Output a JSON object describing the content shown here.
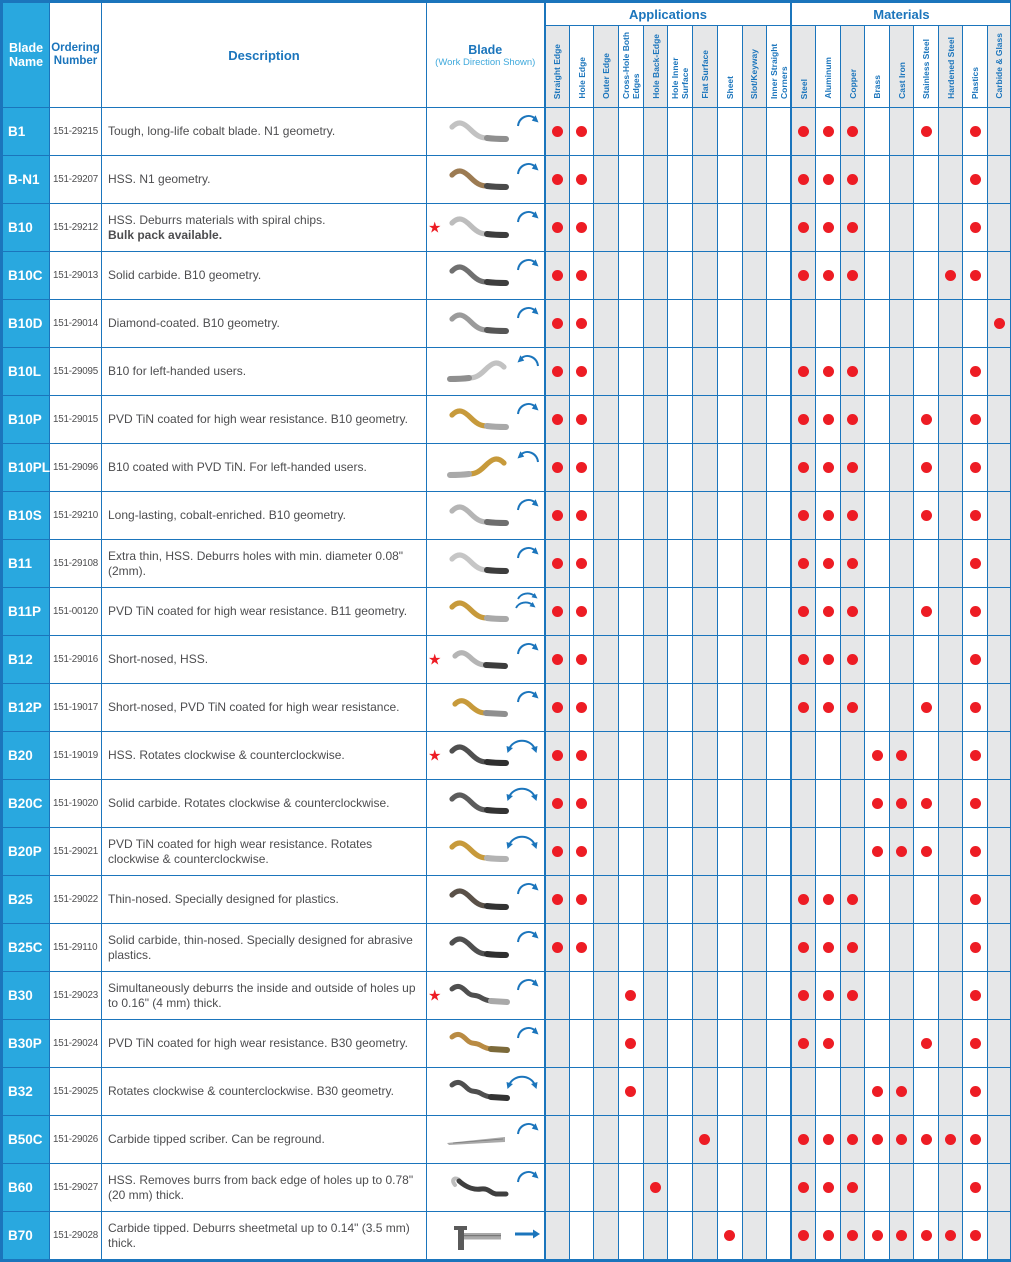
{
  "colors": {
    "accent_blue": "#29a8df",
    "border_blue": "#1b75bc",
    "header_text_blue": "#1b75bc",
    "header_sub_blue": "#3fa9dc",
    "dot_red": "#ed1c24",
    "star_red": "#ed1c24",
    "shade_gray": "#e6e7e8",
    "arrow_blue": "#1b75bc",
    "body_text": "#4d4d4f"
  },
  "table": {
    "header": {
      "blade_name": "Blade Name",
      "ordering": "Ordering Number",
      "description": "Description",
      "blade": "Blade",
      "blade_sub": "(Work Direction Shown)",
      "applications": "Applications",
      "materials": "Materials",
      "app_columns": [
        "Straight Edge",
        "Hole Edge",
        "Outer Edge",
        "Cross-Hole Both Edges",
        "Hole Back-Edge",
        "Hole Inner Surface",
        "Flat Surface",
        "Sheet",
        "Slot/Keyway",
        "Inner Straight Corners"
      ],
      "mat_columns": [
        "Steel",
        "Aluminum",
        "Copper",
        "Brass",
        "Cast Iron",
        "Stainless Steel",
        "Hardened Steel",
        "Plastics",
        "Carbide & Glass"
      ]
    },
    "rows": [
      {
        "name": "B1",
        "order": "151-29215",
        "desc": "Tough, long-life cobalt blade. N1 geometry.",
        "desc_bold": "",
        "star": false,
        "blade_shape": "s",
        "blade_mirror": false,
        "blade_colors": [
          "#c2c2c2",
          "#8f8f8f"
        ],
        "arrow": "cw",
        "apps": [
          1,
          1,
          0,
          0,
          0,
          0,
          0,
          0,
          0,
          0
        ],
        "mats": [
          1,
          1,
          1,
          0,
          0,
          1,
          0,
          1,
          0
        ]
      },
      {
        "name": "B-N1",
        "order": "151-29207",
        "desc": "HSS. N1 geometry.",
        "desc_bold": "",
        "star": false,
        "blade_shape": "s",
        "blade_mirror": false,
        "blade_colors": [
          "#9c7b52",
          "#4a4a4a"
        ],
        "arrow": "cw",
        "apps": [
          1,
          1,
          0,
          0,
          0,
          0,
          0,
          0,
          0,
          0
        ],
        "mats": [
          1,
          1,
          1,
          0,
          0,
          0,
          0,
          1,
          0
        ]
      },
      {
        "name": "B10",
        "order": "151-29212",
        "desc": "HSS. Deburrs materials with spiral chips.",
        "desc_bold": "Bulk pack available.",
        "star": true,
        "blade_shape": "s",
        "blade_mirror": false,
        "blade_colors": [
          "#bdbdbd",
          "#3d3d3d"
        ],
        "arrow": "cw",
        "apps": [
          1,
          1,
          0,
          0,
          0,
          0,
          0,
          0,
          0,
          0
        ],
        "mats": [
          1,
          1,
          1,
          0,
          0,
          0,
          0,
          1,
          0
        ]
      },
      {
        "name": "B10C",
        "order": "151-29013",
        "desc": "Solid carbide. B10 geometry.",
        "desc_bold": "",
        "star": false,
        "blade_shape": "s",
        "blade_mirror": false,
        "blade_colors": [
          "#707070",
          "#3d3d3d"
        ],
        "arrow": "cw",
        "apps": [
          1,
          1,
          0,
          0,
          0,
          0,
          0,
          0,
          0,
          0
        ],
        "mats": [
          1,
          1,
          1,
          0,
          0,
          0,
          1,
          1,
          0
        ]
      },
      {
        "name": "B10D",
        "order": "151-29014",
        "desc": "Diamond-coated. B10 geometry.",
        "desc_bold": "",
        "star": false,
        "blade_shape": "s",
        "blade_mirror": false,
        "blade_colors": [
          "#9b9b9b",
          "#565656"
        ],
        "arrow": "cw",
        "apps": [
          1,
          1,
          0,
          0,
          0,
          0,
          0,
          0,
          0,
          0
        ],
        "mats": [
          0,
          0,
          0,
          0,
          0,
          0,
          0,
          0,
          1
        ]
      },
      {
        "name": "B10L",
        "order": "151-29095",
        "desc": "B10 for left-handed users.",
        "desc_bold": "",
        "star": false,
        "blade_shape": "s",
        "blade_mirror": true,
        "blade_colors": [
          "#c2c2c2",
          "#8f8f8f"
        ],
        "arrow": "ccw",
        "apps": [
          1,
          1,
          0,
          0,
          0,
          0,
          0,
          0,
          0,
          0
        ],
        "mats": [
          1,
          1,
          1,
          0,
          0,
          0,
          0,
          1,
          0
        ]
      },
      {
        "name": "B10P",
        "order": "151-29015",
        "desc": "PVD TiN coated for high wear resistance. B10 geometry.",
        "desc_bold": "",
        "star": false,
        "blade_shape": "s",
        "blade_mirror": false,
        "blade_colors": [
          "#c79a3b",
          "#a9a9a9"
        ],
        "arrow": "cw",
        "apps": [
          1,
          1,
          0,
          0,
          0,
          0,
          0,
          0,
          0,
          0
        ],
        "mats": [
          1,
          1,
          1,
          0,
          0,
          1,
          0,
          1,
          0
        ]
      },
      {
        "name": "B10PL",
        "order": "151-29096",
        "desc": "B10 coated with PVD TiN. For left-handed users.",
        "desc_bold": "",
        "star": false,
        "blade_shape": "s",
        "blade_mirror": true,
        "blade_colors": [
          "#c79a3b",
          "#a9a9a9"
        ],
        "arrow": "ccw",
        "apps": [
          1,
          1,
          0,
          0,
          0,
          0,
          0,
          0,
          0,
          0
        ],
        "mats": [
          1,
          1,
          1,
          0,
          0,
          1,
          0,
          1,
          0
        ]
      },
      {
        "name": "B10S",
        "order": "151-29210",
        "desc": "Long-lasting, cobalt-enriched. B10 geometry.",
        "desc_bold": "",
        "star": false,
        "blade_shape": "s",
        "blade_mirror": false,
        "blade_colors": [
          "#b5b5b5",
          "#6e6e6e"
        ],
        "arrow": "cw",
        "apps": [
          1,
          1,
          0,
          0,
          0,
          0,
          0,
          0,
          0,
          0
        ],
        "mats": [
          1,
          1,
          1,
          0,
          0,
          1,
          0,
          1,
          0
        ]
      },
      {
        "name": "B11",
        "order": "151-29108",
        "desc": "Extra thin, HSS. Deburrs holes with min. diameter 0.08\" (2mm).",
        "desc_bold": "",
        "star": false,
        "blade_shape": "s",
        "blade_mirror": false,
        "blade_colors": [
          "#c6c6c6",
          "#3d3d3d"
        ],
        "arrow": "cw",
        "apps": [
          1,
          1,
          0,
          0,
          0,
          0,
          0,
          0,
          0,
          0
        ],
        "mats": [
          1,
          1,
          1,
          0,
          0,
          0,
          0,
          1,
          0
        ]
      },
      {
        "name": "B11P",
        "order": "151-00120",
        "desc": "PVD TiN coated for high wear resistance. B11 geometry.",
        "desc_bold": "",
        "star": false,
        "blade_shape": "s",
        "blade_mirror": false,
        "blade_colors": [
          "#c79a3b",
          "#a9a9a9"
        ],
        "arrow": "cw2",
        "apps": [
          1,
          1,
          0,
          0,
          0,
          0,
          0,
          0,
          0,
          0
        ],
        "mats": [
          1,
          1,
          1,
          0,
          0,
          1,
          0,
          1,
          0
        ]
      },
      {
        "name": "B12",
        "order": "151-29016",
        "desc": "Short-nosed, HSS.",
        "desc_bold": "",
        "star": true,
        "blade_shape": "short",
        "blade_mirror": false,
        "blade_colors": [
          "#b5b5b5",
          "#3d3d3d"
        ],
        "arrow": "cw",
        "apps": [
          1,
          1,
          0,
          0,
          0,
          0,
          0,
          0,
          0,
          0
        ],
        "mats": [
          1,
          1,
          1,
          0,
          0,
          0,
          0,
          1,
          0
        ]
      },
      {
        "name": "B12P",
        "order": "151-19017",
        "desc": "Short-nosed, PVD TiN coated for high wear resistance.",
        "desc_bold": "",
        "star": false,
        "blade_shape": "short",
        "blade_mirror": false,
        "blade_colors": [
          "#c79a3b",
          "#8f8f8f"
        ],
        "arrow": "cw",
        "apps": [
          1,
          1,
          0,
          0,
          0,
          0,
          0,
          0,
          0,
          0
        ],
        "mats": [
          1,
          1,
          1,
          0,
          0,
          1,
          0,
          1,
          0
        ]
      },
      {
        "name": "B20",
        "order": "151-19019",
        "desc": "HSS. Rotates clockwise & counterclockwise.",
        "desc_bold": "",
        "star": true,
        "blade_shape": "s",
        "blade_mirror": false,
        "blade_colors": [
          "#4f4f4f",
          "#2f2f2f"
        ],
        "arrow": "both",
        "apps": [
          1,
          1,
          0,
          0,
          0,
          0,
          0,
          0,
          0,
          0
        ],
        "mats": [
          0,
          0,
          0,
          1,
          1,
          0,
          0,
          1,
          0
        ]
      },
      {
        "name": "B20C",
        "order": "151-19020",
        "desc": "Solid carbide. Rotates clockwise & counterclockwise.",
        "desc_bold": "",
        "star": false,
        "blade_shape": "s",
        "blade_mirror": false,
        "blade_colors": [
          "#5c5c5c",
          "#333333"
        ],
        "arrow": "both",
        "apps": [
          1,
          1,
          0,
          0,
          0,
          0,
          0,
          0,
          0,
          0
        ],
        "mats": [
          0,
          0,
          0,
          1,
          1,
          1,
          0,
          1,
          0
        ]
      },
      {
        "name": "B20P",
        "order": "151-29021",
        "desc": "PVD TiN coated for high wear resistance. Rotates clockwise & counterclockwise.",
        "desc_bold": "",
        "star": false,
        "blade_shape": "s",
        "blade_mirror": false,
        "blade_colors": [
          "#c79a3b",
          "#b3b3b3"
        ],
        "arrow": "both",
        "apps": [
          1,
          1,
          0,
          0,
          0,
          0,
          0,
          0,
          0,
          0
        ],
        "mats": [
          0,
          0,
          0,
          1,
          1,
          1,
          0,
          1,
          0
        ]
      },
      {
        "name": "B25",
        "order": "151-29022",
        "desc": "Thin-nosed. Specially designed for plastics.",
        "desc_bold": "",
        "star": false,
        "blade_shape": "s",
        "blade_mirror": false,
        "blade_colors": [
          "#5a5148",
          "#333333"
        ],
        "arrow": "cw",
        "apps": [
          1,
          1,
          0,
          0,
          0,
          0,
          0,
          0,
          0,
          0
        ],
        "mats": [
          1,
          1,
          1,
          0,
          0,
          0,
          0,
          1,
          0
        ]
      },
      {
        "name": "B25C",
        "order": "151-29110",
        "desc": "Solid carbide, thin-nosed. Specially designed for abrasive plastics.",
        "desc_bold": "",
        "star": false,
        "blade_shape": "s",
        "blade_mirror": false,
        "blade_colors": [
          "#4f4f4f",
          "#2f2f2f"
        ],
        "arrow": "cw",
        "apps": [
          1,
          1,
          0,
          0,
          0,
          0,
          0,
          0,
          0,
          0
        ],
        "mats": [
          1,
          1,
          1,
          0,
          0,
          0,
          0,
          1,
          0
        ]
      },
      {
        "name": "B30",
        "order": "151-29023",
        "desc": "Simultaneously deburrs the inside and outside of holes up to 0.16\" (4 mm) thick.",
        "desc_bold": "",
        "star": true,
        "blade_shape": "b30",
        "blade_mirror": false,
        "blade_colors": [
          "#4f4f4f",
          "#a9a9a9"
        ],
        "arrow": "cw",
        "apps": [
          0,
          0,
          0,
          1,
          0,
          0,
          0,
          0,
          0,
          0
        ],
        "mats": [
          1,
          1,
          1,
          0,
          0,
          0,
          0,
          1,
          0
        ]
      },
      {
        "name": "B30P",
        "order": "151-29024",
        "desc": "PVD TiN coated for high wear resistance. B30 geometry.",
        "desc_bold": "",
        "star": false,
        "blade_shape": "b30",
        "blade_mirror": false,
        "blade_colors": [
          "#b98b43",
          "#7c6a3a"
        ],
        "arrow": "cw",
        "apps": [
          0,
          0,
          0,
          1,
          0,
          0,
          0,
          0,
          0,
          0
        ],
        "mats": [
          1,
          1,
          0,
          0,
          0,
          1,
          0,
          1,
          0
        ]
      },
      {
        "name": "B32",
        "order": "151-29025",
        "desc": "Rotates clockwise & counterclockwise. B30 geometry.",
        "desc_bold": "",
        "star": false,
        "blade_shape": "b30",
        "blade_mirror": false,
        "blade_colors": [
          "#4f4f4f",
          "#333333"
        ],
        "arrow": "both",
        "apps": [
          0,
          0,
          0,
          1,
          0,
          0,
          0,
          0,
          0,
          0
        ],
        "mats": [
          0,
          0,
          0,
          1,
          1,
          0,
          0,
          1,
          0
        ]
      },
      {
        "name": "B50C",
        "order": "151-29026",
        "desc": "Carbide tipped scriber. Can be reground.",
        "desc_bold": "",
        "star": false,
        "blade_shape": "scriber",
        "blade_mirror": false,
        "blade_colors": [
          "#a9a9a9",
          "#7c7c7c"
        ],
        "arrow": "cw",
        "apps": [
          0,
          0,
          0,
          0,
          0,
          0,
          1,
          0,
          0,
          0
        ],
        "mats": [
          1,
          1,
          1,
          1,
          1,
          1,
          1,
          1,
          0
        ]
      },
      {
        "name": "B60",
        "order": "151-29027",
        "desc": "HSS. Removes burrs from back edge of holes up to 0.78\" (20 mm) thick.",
        "desc_bold": "",
        "star": false,
        "blade_shape": "hook",
        "blade_mirror": false,
        "blade_colors": [
          "#3f3f3f",
          "#bdbdbd"
        ],
        "arrow": "cw",
        "apps": [
          0,
          0,
          0,
          0,
          1,
          0,
          0,
          0,
          0,
          0
        ],
        "mats": [
          1,
          1,
          1,
          0,
          0,
          0,
          0,
          1,
          0
        ]
      },
      {
        "name": "B70",
        "order": "151-29028",
        "desc": "Carbide tipped. Deburrs sheetmetal up to 0.14\" (3.5 mm) thick.",
        "desc_bold": "",
        "star": false,
        "blade_shape": "tee",
        "blade_mirror": false,
        "blade_colors": [
          "#a9a9a9",
          "#5a5a5a"
        ],
        "arrow": "straight",
        "apps": [
          0,
          0,
          0,
          0,
          0,
          0,
          0,
          1,
          0,
          0
        ],
        "mats": [
          1,
          1,
          1,
          1,
          1,
          1,
          1,
          1,
          0
        ]
      }
    ]
  }
}
